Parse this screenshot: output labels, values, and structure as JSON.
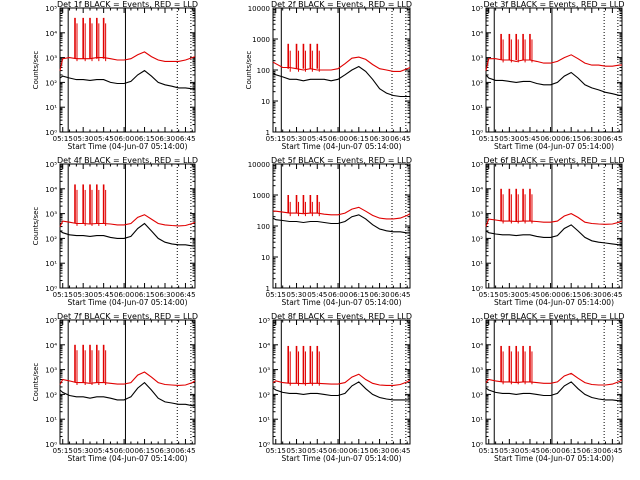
{
  "colors": {
    "events": "#000000",
    "lld": "#e00000",
    "axes": "#000000"
  },
  "chart_data": [
    {
      "type": "line",
      "title": "Det 1f BLACK = Events, RED = LLD",
      "xlabel": "Start Time (04-Jun-07 05:14:00)",
      "ylabel": "Counts/sec",
      "yscale": "log",
      "ylim": [
        1,
        100000
      ],
      "ytick_labels": [
        "10⁰",
        "10¹",
        "10²",
        "10³",
        "10⁴",
        "10⁵"
      ],
      "xtick_labels": [
        "05:15",
        "05:30",
        "05:45",
        "06:00",
        "06:15",
        "06:30",
        "06:45"
      ],
      "x": [
        "05:13",
        "05:15",
        "05:20",
        "05:25",
        "05:30",
        "05:35",
        "05:40",
        "05:45",
        "05:50",
        "05:55",
        "06:00",
        "06:05",
        "06:10",
        "06:15",
        "06:20",
        "06:25",
        "06:30",
        "06:35",
        "06:40",
        "06:45",
        "06:50",
        "06:52"
      ],
      "series": [
        {
          "values": [
            300,
            900,
            1000,
            900,
            900,
            900,
            1000,
            1000,
            900,
            800,
            800,
            900,
            1300,
            1700,
            1100,
            800,
            700,
            700,
            700,
            800,
            1000,
            1100
          ]
        },
        {
          "values": [
            150,
            180,
            150,
            130,
            130,
            120,
            130,
            130,
            100,
            90,
            90,
            110,
            200,
            300,
            180,
            100,
            80,
            70,
            60,
            60,
            55,
            55
          ]
        }
      ],
      "spikes_x": [
        "05:24",
        "05:30",
        "05:35",
        "05:40",
        "05:45"
      ],
      "spikes_peak": 40000,
      "vlines_solid": [
        "05:19",
        "06:01"
      ],
      "vlines_dotted": [
        "06:39",
        "06:49"
      ]
    },
    {
      "type": "line",
      "title": "Det 2f BLACK = Events, RED = LLD",
      "xlabel": "Start Time (04-Jun-07 05:14:00)",
      "ylabel": "Counts/sec",
      "yscale": "log",
      "ylim": [
        1,
        10000
      ],
      "ytick_labels": [
        "1",
        "10",
        "100",
        "1000",
        "10000"
      ],
      "xtick_labels": [
        "05:15",
        "05:30",
        "05:45",
        "06:00",
        "06:15",
        "06:30",
        "06:45"
      ],
      "x": [
        "05:13",
        "05:15",
        "05:20",
        "05:25",
        "05:30",
        "05:35",
        "05:40",
        "05:45",
        "05:50",
        "05:55",
        "06:00",
        "06:05",
        "06:10",
        "06:15",
        "06:20",
        "06:25",
        "06:30",
        "06:35",
        "06:40",
        "06:45",
        "06:50",
        "06:52"
      ],
      "series": [
        {
          "values": [
            180,
            160,
            120,
            120,
            110,
            100,
            110,
            100,
            100,
            100,
            110,
            160,
            240,
            260,
            220,
            150,
            110,
            100,
            90,
            90,
            110,
            120
          ]
        },
        {
          "values": [
            80,
            70,
            60,
            50,
            50,
            45,
            50,
            50,
            50,
            45,
            50,
            70,
            100,
            130,
            90,
            50,
            25,
            18,
            15,
            14,
            14,
            14
          ]
        }
      ],
      "spikes_x": [
        "05:24",
        "05:30",
        "05:35",
        "05:40",
        "05:45"
      ],
      "spikes_peak": 700,
      "vlines_solid": [
        "05:19",
        "06:01"
      ],
      "vlines_dotted": [
        "06:39",
        "06:49"
      ]
    },
    {
      "type": "line",
      "title": "Det 3f BLACK = Events, RED = LLD",
      "xlabel": "Start Time (04-Jun-07 05:14:00)",
      "ylabel": "",
      "yscale": "log",
      "ylim": [
        1,
        100000
      ],
      "ytick_labels": [
        "10⁰",
        "10¹",
        "10²",
        "10³",
        "10⁴",
        "10⁵"
      ],
      "xtick_labels": [
        "05:15",
        "05:30",
        "05:45",
        "06:00",
        "06:15",
        "06:30",
        "06:45"
      ],
      "x": [
        "05:13",
        "05:15",
        "05:20",
        "05:25",
        "05:30",
        "05:35",
        "05:40",
        "05:45",
        "05:50",
        "05:55",
        "06:00",
        "06:05",
        "06:10",
        "06:15",
        "06:20",
        "06:25",
        "06:30",
        "06:35",
        "06:40",
        "06:45",
        "06:50",
        "06:52"
      ],
      "series": [
        {
          "values": [
            300,
            900,
            900,
            800,
            800,
            700,
            800,
            800,
            700,
            600,
            600,
            700,
            1000,
            1300,
            900,
            600,
            500,
            500,
            450,
            450,
            500,
            500
          ]
        },
        {
          "values": [
            200,
            150,
            120,
            120,
            110,
            100,
            110,
            110,
            90,
            80,
            80,
            100,
            180,
            250,
            150,
            80,
            60,
            50,
            40,
            35,
            30,
            30
          ]
        }
      ],
      "spikes_x": [
        "05:24",
        "05:30",
        "05:35",
        "05:40",
        "05:45"
      ],
      "spikes_peak": 9000,
      "vlines_solid": [
        "05:19",
        "06:01"
      ],
      "vlines_dotted": [
        "06:39",
        "06:49"
      ]
    },
    {
      "type": "line",
      "title": "Det 4f BLACK = Events, RED = LLD",
      "xlabel": "Start Time (04-Jun-07 05:14:00)",
      "ylabel": "Counts/sec",
      "yscale": "log",
      "ylim": [
        1,
        100000
      ],
      "ytick_labels": [
        "10⁰",
        "10¹",
        "10²",
        "10³",
        "10⁴",
        "10⁵"
      ],
      "xtick_labels": [
        "05:15",
        "05:30",
        "05:45",
        "06:00",
        "06:15",
        "06:30",
        "06:45"
      ],
      "x": [
        "05:13",
        "05:15",
        "05:20",
        "05:25",
        "05:30",
        "05:35",
        "05:40",
        "05:45",
        "05:50",
        "05:55",
        "06:00",
        "06:05",
        "06:10",
        "06:15",
        "06:20",
        "06:25",
        "06:30",
        "06:35",
        "06:40",
        "06:45",
        "06:50",
        "06:52"
      ],
      "series": [
        {
          "values": [
            300,
            500,
            450,
            400,
            400,
            380,
            400,
            400,
            380,
            350,
            350,
            400,
            700,
            900,
            600,
            400,
            350,
            330,
            320,
            330,
            400,
            450
          ]
        },
        {
          "values": [
            200,
            170,
            140,
            130,
            130,
            120,
            130,
            130,
            110,
            100,
            100,
            120,
            250,
            400,
            200,
            100,
            70,
            60,
            55,
            55,
            50,
            50
          ]
        }
      ],
      "spikes_x": [
        "05:24",
        "05:30",
        "05:35",
        "05:40",
        "05:45"
      ],
      "spikes_peak": 15000,
      "vlines_solid": [
        "05:19",
        "06:01"
      ],
      "vlines_dotted": [
        "06:39",
        "06:49"
      ]
    },
    {
      "type": "line",
      "title": "Det 5f BLACK = Events, RED = LLD",
      "xlabel": "Start Time (04-Jun-07 05:14:00)",
      "ylabel": "",
      "yscale": "log",
      "ylim": [
        1,
        10000
      ],
      "ytick_labels": [
        "1",
        "10",
        "100",
        "1000",
        "10000"
      ],
      "xtick_labels": [
        "05:15",
        "05:30",
        "05:45",
        "06:00",
        "06:15",
        "06:30",
        "06:45"
      ],
      "x": [
        "05:13",
        "05:15",
        "05:20",
        "05:25",
        "05:30",
        "05:35",
        "05:40",
        "05:45",
        "05:50",
        "05:55",
        "06:00",
        "06:05",
        "06:10",
        "06:15",
        "06:20",
        "06:25",
        "06:30",
        "06:35",
        "06:40",
        "06:45",
        "06:50",
        "06:52"
      ],
      "series": [
        {
          "values": [
            300,
            300,
            280,
            260,
            260,
            250,
            260,
            260,
            240,
            230,
            230,
            260,
            350,
            400,
            300,
            220,
            180,
            170,
            170,
            180,
            220,
            250
          ]
        },
        {
          "values": [
            180,
            160,
            150,
            140,
            140,
            130,
            140,
            140,
            130,
            120,
            120,
            140,
            200,
            230,
            170,
            110,
            80,
            70,
            65,
            65,
            60,
            60
          ]
        }
      ],
      "spikes_x": [
        "05:24",
        "05:30",
        "05:35",
        "05:40",
        "05:45"
      ],
      "spikes_peak": 1000,
      "vlines_solid": [
        "05:19",
        "06:01"
      ],
      "vlines_dotted": [
        "06:39",
        "06:49"
      ]
    },
    {
      "type": "line",
      "title": "Det 6f BLACK = Events, RED = LLD",
      "xlabel": "Start Time (04-Jun-07 05:14:00)",
      "ylabel": "",
      "yscale": "log",
      "ylim": [
        1,
        100000
      ],
      "ytick_labels": [
        "10⁰",
        "10¹",
        "10²",
        "10³",
        "10⁴",
        "10⁵"
      ],
      "xtick_labels": [
        "05:15",
        "05:30",
        "05:45",
        "06:00",
        "06:15",
        "06:30",
        "06:45"
      ],
      "x": [
        "05:13",
        "05:15",
        "05:20",
        "05:25",
        "05:30",
        "05:35",
        "05:40",
        "05:45",
        "05:50",
        "05:55",
        "06:00",
        "06:05",
        "06:10",
        "06:15",
        "06:20",
        "06:25",
        "06:30",
        "06:35",
        "06:40",
        "06:45",
        "06:50",
        "06:52"
      ],
      "series": [
        {
          "values": [
            300,
            600,
            550,
            500,
            500,
            480,
            500,
            500,
            480,
            450,
            450,
            500,
            800,
            1000,
            700,
            450,
            400,
            380,
            370,
            380,
            450,
            500
          ]
        },
        {
          "values": [
            200,
            170,
            150,
            140,
            140,
            130,
            140,
            140,
            120,
            110,
            110,
            130,
            250,
            350,
            200,
            110,
            80,
            70,
            65,
            60,
            55,
            55
          ]
        }
      ],
      "spikes_x": [
        "05:24",
        "05:30",
        "05:35",
        "05:40",
        "05:45"
      ],
      "spikes_peak": 10000,
      "vlines_solid": [
        "05:19",
        "06:01"
      ],
      "vlines_dotted": [
        "06:39",
        "06:49"
      ]
    },
    {
      "type": "line",
      "title": "Det 7f BLACK = Events, RED = LLD",
      "xlabel": "Start Time (04-Jun-07 05:14:00)",
      "ylabel": "Counts/sec",
      "yscale": "log",
      "ylim": [
        1,
        100000
      ],
      "ytick_labels": [
        "10⁰",
        "10¹",
        "10²",
        "10³",
        "10⁴",
        "10⁵"
      ],
      "xtick_labels": [
        "05:15",
        "05:30",
        "05:45",
        "06:00",
        "06:15",
        "06:30",
        "06:45"
      ],
      "x": [
        "05:13",
        "05:15",
        "05:20",
        "05:25",
        "05:30",
        "05:35",
        "05:40",
        "05:45",
        "05:50",
        "05:55",
        "06:00",
        "06:05",
        "06:10",
        "06:15",
        "06:20",
        "06:25",
        "06:30",
        "06:35",
        "06:40",
        "06:45",
        "06:50",
        "06:52"
      ],
      "series": [
        {
          "values": [
            250,
            400,
            350,
            300,
            300,
            280,
            300,
            300,
            280,
            260,
            260,
            300,
            600,
            800,
            500,
            300,
            250,
            240,
            230,
            240,
            300,
            350
          ]
        },
        {
          "values": [
            150,
            120,
            90,
            80,
            80,
            70,
            80,
            80,
            70,
            60,
            60,
            80,
            180,
            300,
            150,
            70,
            50,
            45,
            40,
            40,
            35,
            35
          ]
        }
      ],
      "spikes_x": [
        "05:24",
        "05:30",
        "05:35",
        "05:40",
        "05:45"
      ],
      "spikes_peak": 10000,
      "vlines_solid": [
        "05:19",
        "06:01"
      ],
      "vlines_dotted": [
        "06:39",
        "06:49"
      ]
    },
    {
      "type": "line",
      "title": "Det 8f BLACK = Events, RED = LLD",
      "xlabel": "Start Time (04-Jun-07 05:14:00)",
      "ylabel": "",
      "yscale": "log",
      "ylim": [
        1,
        100000
      ],
      "ytick_labels": [
        "10⁰",
        "10¹",
        "10²",
        "10³",
        "10⁴",
        "10⁵"
      ],
      "xtick_labels": [
        "05:15",
        "05:30",
        "05:45",
        "06:00",
        "06:15",
        "06:30",
        "06:45"
      ],
      "x": [
        "05:13",
        "05:15",
        "05:20",
        "05:25",
        "05:30",
        "05:35",
        "05:40",
        "05:45",
        "05:50",
        "05:55",
        "06:00",
        "06:05",
        "06:10",
        "06:15",
        "06:20",
        "06:25",
        "06:30",
        "06:35",
        "06:40",
        "06:45",
        "06:50",
        "06:52"
      ],
      "series": [
        {
          "values": [
            300,
            350,
            300,
            280,
            280,
            270,
            280,
            280,
            270,
            260,
            260,
            300,
            500,
            650,
            400,
            280,
            240,
            230,
            230,
            250,
            320,
            380
          ]
        },
        {
          "values": [
            180,
            150,
            120,
            110,
            110,
            100,
            110,
            110,
            100,
            90,
            90,
            110,
            220,
            320,
            170,
            100,
            75,
            65,
            60,
            60,
            60,
            60
          ]
        }
      ],
      "spikes_x": [
        "05:24",
        "05:30",
        "05:35",
        "05:40",
        "05:45"
      ],
      "spikes_peak": 9000,
      "vlines_solid": [
        "05:19",
        "06:01"
      ],
      "vlines_dotted": [
        "06:39",
        "06:49"
      ]
    },
    {
      "type": "line",
      "title": "Det 9f BLACK = Events, RED = LLD",
      "xlabel": "Start Time (04-Jun-07 05:14:00)",
      "ylabel": "",
      "yscale": "log",
      "ylim": [
        1,
        100000
      ],
      "ytick_labels": [
        "10⁰",
        "10¹",
        "10²",
        "10³",
        "10⁴",
        "10⁵"
      ],
      "xtick_labels": [
        "05:15",
        "05:30",
        "05:45",
        "06:00",
        "06:15",
        "06:30",
        "06:45"
      ],
      "x": [
        "05:13",
        "05:15",
        "05:20",
        "05:25",
        "05:30",
        "05:35",
        "05:40",
        "05:45",
        "05:50",
        "05:55",
        "06:00",
        "06:05",
        "06:10",
        "06:15",
        "06:20",
        "06:25",
        "06:30",
        "06:35",
        "06:40",
        "06:45",
        "06:50",
        "06:52"
      ],
      "series": [
        {
          "values": [
            300,
            400,
            350,
            320,
            320,
            300,
            320,
            320,
            300,
            280,
            280,
            320,
            550,
            700,
            450,
            300,
            250,
            240,
            240,
            260,
            330,
            380
          ]
        },
        {
          "values": [
            180,
            150,
            120,
            110,
            110,
            100,
            110,
            110,
            100,
            90,
            90,
            110,
            220,
            320,
            170,
            100,
            75,
            65,
            60,
            60,
            55,
            55
          ]
        }
      ],
      "spikes_x": [
        "05:24",
        "05:30",
        "05:35",
        "05:40",
        "05:45"
      ],
      "spikes_peak": 9000,
      "vlines_solid": [
        "05:19",
        "06:01"
      ],
      "vlines_dotted": [
        "06:39",
        "06:49"
      ]
    }
  ]
}
